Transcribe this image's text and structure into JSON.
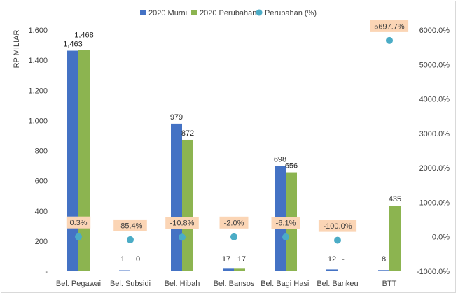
{
  "chart_data": {
    "type": "bar",
    "ylabel": "RP MILIAR",
    "categories": [
      "Bel. Pegawai",
      "Bel. Subsidi",
      "Bel. Hibah",
      "Bel. Bansos",
      "Bel. Bagi Hasil",
      "Bel. Bankeu",
      "BTT"
    ],
    "series": [
      {
        "name": "2020 Murni",
        "color": "#4472C4",
        "values": [
          1463,
          1,
          979,
          17,
          698,
          12,
          8
        ],
        "labels": [
          "1,463",
          "1",
          "979",
          "17",
          "698",
          "12",
          "8"
        ]
      },
      {
        "name": "2020 Perubahan",
        "color": "#8CB450",
        "values": [
          1468,
          0,
          872,
          17,
          656,
          0,
          435
        ],
        "labels": [
          "1,468",
          "0",
          "872",
          "17",
          "656",
          "-",
          "435"
        ]
      },
      {
        "name": "Perubahan (%)",
        "color": "#4BACC6",
        "axis": "right",
        "values": [
          0.3,
          -85.4,
          -10.8,
          -2.0,
          -6.1,
          -100.0,
          5697.7
        ],
        "labels": [
          "0.3%",
          "-85.4%",
          "-10.8%",
          "-2.0%",
          "-6.1%",
          "-100.0%",
          "5697.7%"
        ]
      }
    ],
    "ylim": [
      0,
      1600
    ],
    "y_ticks": [
      "-",
      "200",
      "400",
      "600",
      "800",
      "1,000",
      "1,200",
      "1,400",
      "1,600"
    ],
    "y2lim": [
      -1000,
      6000
    ],
    "y2_ticks": [
      "-1000.0%",
      "0.0%",
      "1000.0%",
      "2000.0%",
      "3000.0%",
      "4000.0%",
      "5000.0%",
      "6000.0%"
    ],
    "grid": false,
    "legend": "top-center",
    "label_highlight_color": "#FBD5B5"
  }
}
